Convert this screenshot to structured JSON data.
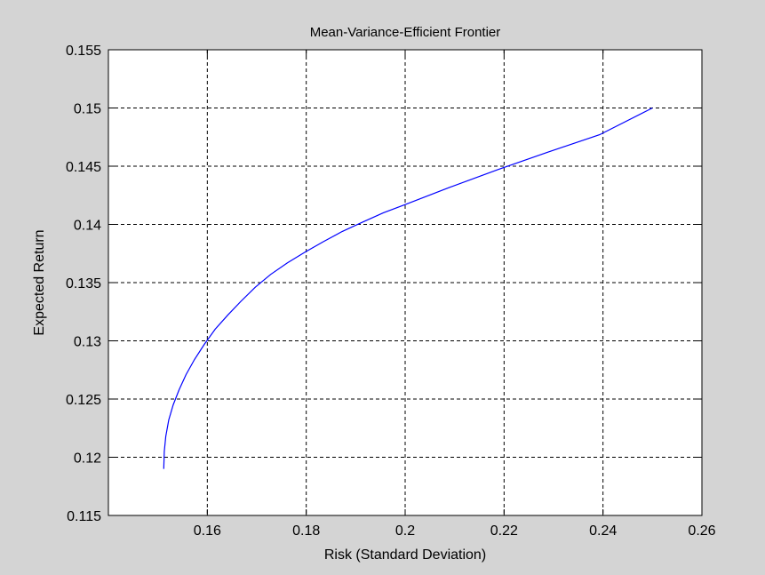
{
  "chart_data": {
    "type": "line",
    "title": "Mean-Variance-Efficient Frontier",
    "xlabel": "Risk (Standard Deviation)",
    "ylabel": "Expected Return",
    "xlim": [
      0.14,
      0.26
    ],
    "ylim": [
      0.115,
      0.155
    ],
    "xticks": [
      0.16,
      0.18,
      0.2,
      0.22,
      0.24,
      0.26
    ],
    "xtick_labels": [
      "0.16",
      "0.18",
      "0.2",
      "0.22",
      "0.24",
      "0.26"
    ],
    "yticks": [
      0.115,
      0.12,
      0.125,
      0.13,
      0.135,
      0.14,
      0.145,
      0.15,
      0.155
    ],
    "ytick_labels": [
      "0.115",
      "0.12",
      "0.125",
      "0.13",
      "0.135",
      "0.14",
      "0.145",
      "0.15",
      "0.155"
    ],
    "grid": true,
    "line_color": "#0000ff",
    "series": [
      {
        "x": [
          0.1512,
          0.1513,
          0.1516,
          0.1522,
          0.1531,
          0.1543,
          0.1557,
          0.1574,
          0.1594,
          0.1616,
          0.1641,
          0.1668,
          0.1697,
          0.1728,
          0.1762,
          0.1797,
          0.1834,
          0.1873,
          0.1914,
          0.1956,
          0.2,
          0.2091,
          0.2187,
          0.2288,
          0.2393,
          0.25
        ],
        "y": [
          0.119,
          0.1205,
          0.1218,
          0.1232,
          0.1245,
          0.1258,
          0.1271,
          0.1284,
          0.1297,
          0.131,
          0.1322,
          0.1334,
          0.1346,
          0.1357,
          0.1367,
          0.1376,
          0.1385,
          0.1394,
          0.1402,
          0.141,
          0.1417,
          0.1432,
          0.1447,
          0.1462,
          0.1477,
          0.15
        ]
      }
    ]
  }
}
